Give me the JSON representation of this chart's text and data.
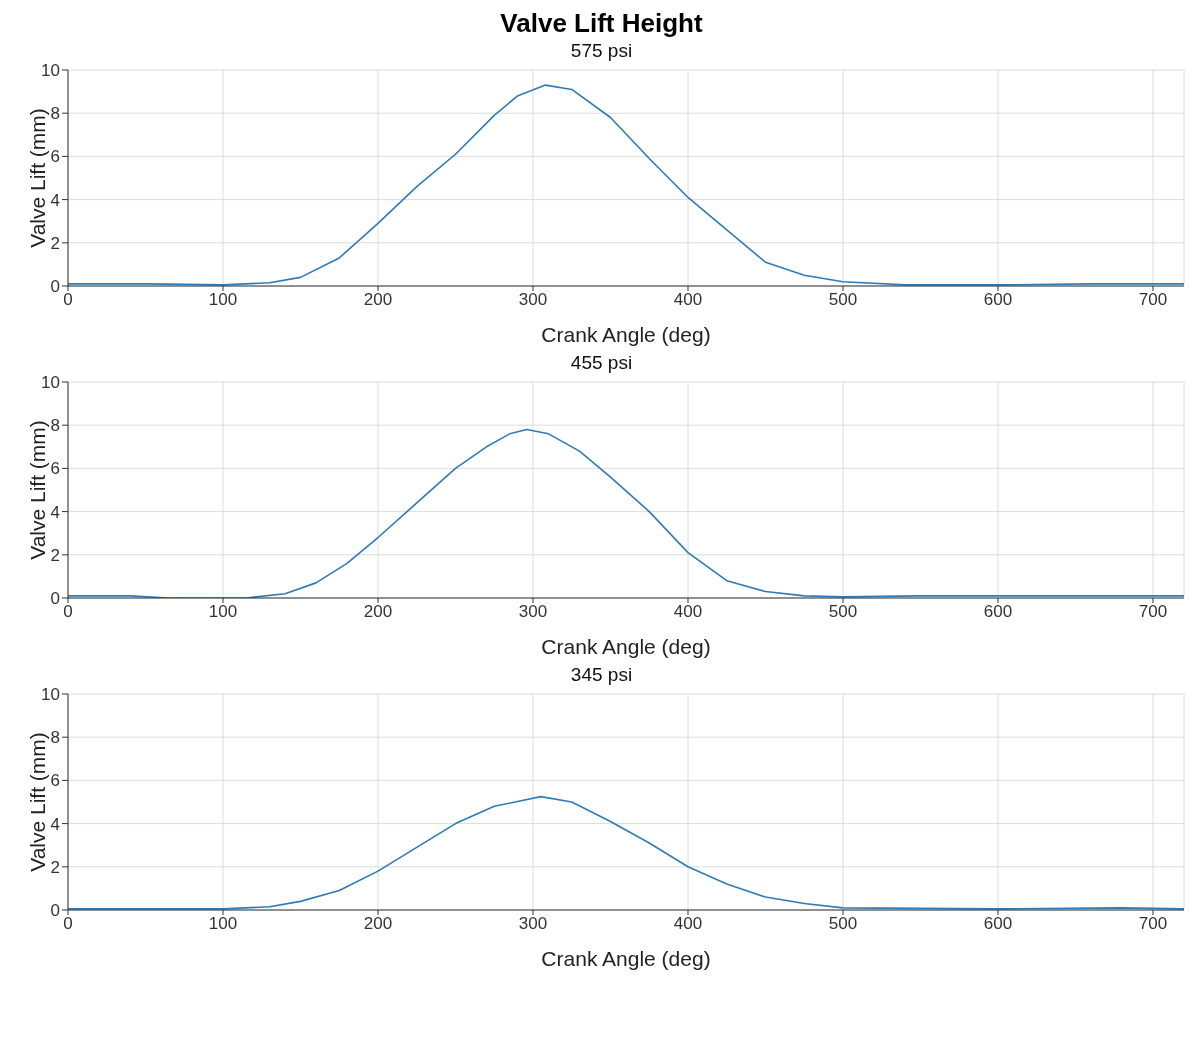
{
  "chart_data": [
    {
      "type": "line",
      "title": "Valve Lift Height",
      "subtitle": "575 psi",
      "xlabel": "Crank Angle (deg)",
      "ylabel": "Valve Lift (mm)",
      "xlim": [
        0,
        720
      ],
      "xticks": [
        0,
        100,
        200,
        300,
        400,
        500,
        600,
        700
      ],
      "ylim": [
        0,
        10
      ],
      "yticks": [
        0,
        2,
        4,
        6,
        8,
        10
      ],
      "grid": true,
      "series": [
        {
          "color": "#2f7bb5",
          "x": [
            0,
            50,
            100,
            130,
            150,
            175,
            200,
            225,
            250,
            275,
            290,
            308,
            325,
            350,
            375,
            400,
            425,
            450,
            475,
            500,
            540,
            600,
            660,
            720
          ],
          "values": [
            0.1,
            0.1,
            0.05,
            0.15,
            0.4,
            1.3,
            2.9,
            4.6,
            6.1,
            7.9,
            8.8,
            9.3,
            9.1,
            7.8,
            5.9,
            4.1,
            2.6,
            1.1,
            0.5,
            0.2,
            0.05,
            0.05,
            0.1,
            0.1
          ]
        }
      ]
    },
    {
      "type": "line",
      "title": "455 psi",
      "xlabel": "Crank Angle (deg)",
      "ylabel": "Valve Lift (mm)",
      "xlim": [
        0,
        720
      ],
      "xticks": [
        0,
        100,
        200,
        300,
        400,
        500,
        600,
        700
      ],
      "ylim": [
        0,
        10
      ],
      "yticks": [
        0,
        2,
        4,
        6,
        8,
        10
      ],
      "grid": true,
      "series": [
        {
          "color": "#2f7bb5",
          "x": [
            0,
            40,
            65,
            115,
            140,
            160,
            180,
            200,
            225,
            250,
            270,
            285,
            296,
            310,
            330,
            350,
            375,
            400,
            425,
            450,
            475,
            500,
            550,
            600,
            650,
            720
          ],
          "values": [
            0.1,
            0.1,
            0,
            0,
            0.2,
            0.7,
            1.6,
            2.8,
            4.4,
            6.0,
            7.0,
            7.6,
            7.8,
            7.6,
            6.8,
            5.6,
            4.0,
            2.1,
            0.8,
            0.3,
            0.1,
            0.05,
            0.1,
            0.1,
            0.1,
            0.1
          ]
        }
      ]
    },
    {
      "type": "line",
      "title": "345 psi",
      "xlabel": "Crank Angle (deg)",
      "ylabel": "Valve Lift (mm)",
      "xlim": [
        0,
        720
      ],
      "xticks": [
        0,
        100,
        200,
        300,
        400,
        500,
        600,
        700
      ],
      "ylim": [
        0,
        10
      ],
      "yticks": [
        0,
        2,
        4,
        6,
        8,
        10
      ],
      "grid": true,
      "series": [
        {
          "color": "#2f7bb5",
          "x": [
            0,
            100,
            130,
            150,
            175,
            200,
            225,
            250,
            275,
            305,
            325,
            350,
            375,
            400,
            425,
            450,
            475,
            500,
            600,
            680,
            720
          ],
          "values": [
            0.05,
            0.05,
            0.15,
            0.4,
            0.9,
            1.8,
            2.9,
            4.0,
            4.8,
            5.25,
            5.0,
            4.1,
            3.1,
            2.0,
            1.2,
            0.6,
            0.3,
            0.1,
            0.05,
            0.1,
            0.05
          ]
        }
      ]
    }
  ]
}
